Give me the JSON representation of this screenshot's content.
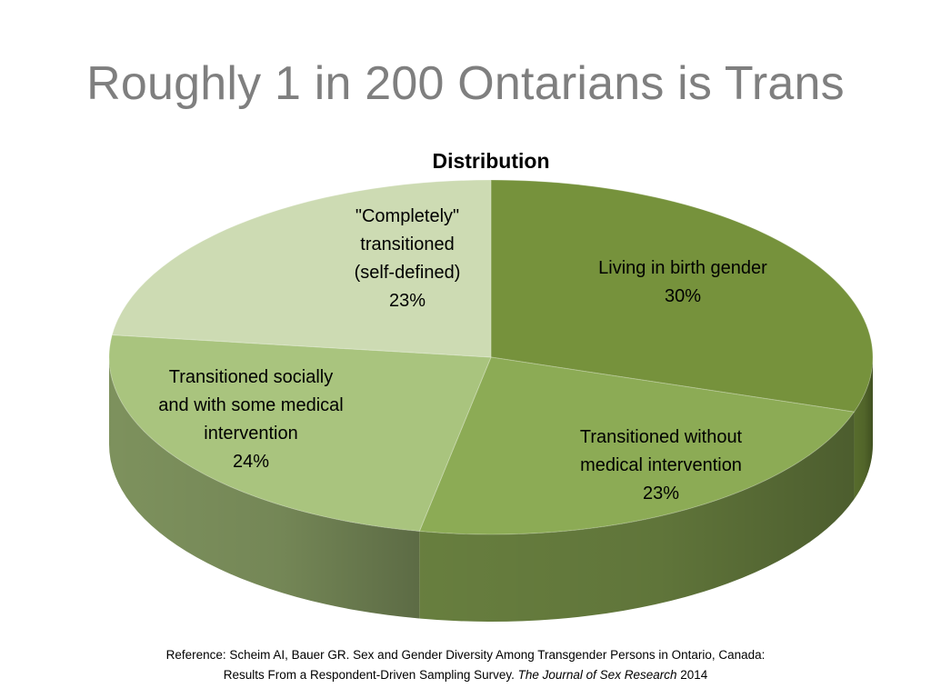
{
  "slide": {
    "title": "Roughly 1 in 200 Ontarians is Trans"
  },
  "chart_data": {
    "type": "pie",
    "title": "Distribution",
    "style": "3d-exploded-none",
    "slices": [
      {
        "label_lines": [
          "Living in birth gender",
          "30%"
        ],
        "name": "Living in birth gender",
        "value": 30,
        "color": "#76923c"
      },
      {
        "label_lines": [
          "Transitioned without",
          "medical intervention",
          "23%"
        ],
        "name": "Transitioned without medical intervention",
        "value": 23,
        "color": "#8cab55"
      },
      {
        "label_lines": [
          "Transitioned socially",
          "and with some medical",
          "intervention",
          "24%"
        ],
        "name": "Transitioned socially and with some medical intervention",
        "value": 24,
        "color": "#a9c47e"
      },
      {
        "label_lines": [
          "\"Completely\"",
          "transitioned",
          "(self-defined)",
          "23%"
        ],
        "name": "\"Completely\" transitioned (self-defined)",
        "value": 23,
        "color": "#cddbb3"
      }
    ]
  },
  "reference": {
    "line1": "Reference: Scheim AI, Bauer GR. Sex and Gender Diversity Among Transgender Persons in Ontario, Canada:",
    "line2_plain": "Results From a Respondent-Driven Sampling Survey. ",
    "line2_journal": "The Journal of Sex Research",
    "line2_year": "  2014"
  }
}
